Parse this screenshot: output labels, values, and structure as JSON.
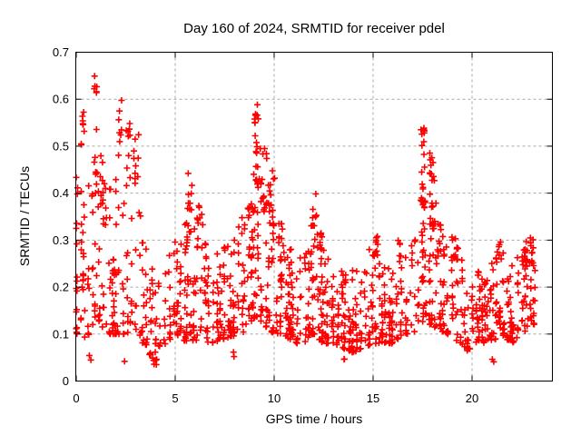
{
  "chart_data": {
    "type": "scatter",
    "title": "Day 160 of 2024, SRMTID for receiver pdel",
    "xlabel": "GPS time / hours",
    "ylabel": "SRMTID / TECUs",
    "xlim": [
      0,
      24.06
    ],
    "ylim": [
      0,
      0.7
    ],
    "xticks": [
      0,
      5,
      10,
      15,
      20
    ],
    "xtick_labels": [
      "0",
      "5",
      "10",
      "15",
      "20"
    ],
    "yticks": [
      0,
      0.1,
      0.2,
      0.3,
      0.4,
      0.5,
      0.6,
      0.7
    ],
    "ytick_labels": [
      "0",
      "0.1",
      "0.2",
      "0.3",
      "0.4",
      "0.5",
      "0.6",
      "0.7"
    ],
    "grid": true,
    "legend": "none",
    "marker": {
      "shape": "plus",
      "size": 7,
      "color": "#ff0000"
    },
    "colors": {
      "marker": "#ff0000",
      "grid": "#a8a8a8",
      "axis": "#000000",
      "background": "#ffffff"
    },
    "series_name": "SRMTID for receiver pdel",
    "time_range_hours": [
      0,
      23.15
    ],
    "approx_point_count": 1500,
    "data_encoding": {
      "envelope": "piecewise band of the dense point cloud read off the plot: [hour, y_min_TECU, y_max_TECU, relative_density]; points cluster toward the band bottom",
      "clusters": "localized bursts / spikes read off the plot: [hour_start, hour_end, y_min_TECU, y_max_TECU, point_count]",
      "seed": "deterministic seed used to scatter points inside the measured envelope"
    },
    "seed": 160,
    "envelope": [
      [
        0.0,
        0.1,
        0.46,
        1.3
      ],
      [
        0.5,
        0.09,
        0.44,
        1.2
      ],
      [
        1.0,
        0.12,
        0.46,
        1.3
      ],
      [
        1.5,
        0.1,
        0.42,
        1.0
      ],
      [
        2.0,
        0.1,
        0.46,
        1.1
      ],
      [
        2.5,
        0.1,
        0.47,
        1.2
      ],
      [
        3.0,
        0.11,
        0.45,
        1.0
      ],
      [
        3.5,
        0.07,
        0.3,
        0.8
      ],
      [
        4.0,
        0.04,
        0.22,
        0.7
      ],
      [
        4.5,
        0.08,
        0.26,
        0.9
      ],
      [
        5.0,
        0.1,
        0.3,
        1.0
      ],
      [
        5.7,
        0.08,
        0.4,
        1.1
      ],
      [
        6.2,
        0.09,
        0.34,
        1.0
      ],
      [
        6.8,
        0.08,
        0.26,
        1.0
      ],
      [
        7.5,
        0.09,
        0.29,
        1.1
      ],
      [
        8.3,
        0.1,
        0.34,
        1.1
      ],
      [
        8.8,
        0.12,
        0.38,
        1.1
      ],
      [
        9.1,
        0.14,
        0.5,
        1.2
      ],
      [
        9.5,
        0.12,
        0.46,
        1.2
      ],
      [
        10.0,
        0.1,
        0.4,
        1.1
      ],
      [
        10.5,
        0.1,
        0.34,
        1.1
      ],
      [
        11.0,
        0.08,
        0.28,
        1.0
      ],
      [
        11.5,
        0.08,
        0.26,
        1.0
      ],
      [
        12.0,
        0.1,
        0.36,
        1.1
      ],
      [
        12.5,
        0.08,
        0.3,
        1.0
      ],
      [
        13.0,
        0.08,
        0.25,
        1.1
      ],
      [
        14.0,
        0.06,
        0.24,
        1.1
      ],
      [
        15.0,
        0.08,
        0.3,
        1.1
      ],
      [
        15.5,
        0.08,
        0.26,
        1.0
      ],
      [
        16.0,
        0.08,
        0.25,
        1.0
      ],
      [
        16.5,
        0.1,
        0.28,
        1.0
      ],
      [
        17.0,
        0.1,
        0.3,
        1.0
      ],
      [
        17.5,
        0.12,
        0.42,
        1.1
      ],
      [
        18.0,
        0.12,
        0.44,
        1.1
      ],
      [
        18.5,
        0.1,
        0.32,
        1.0
      ],
      [
        19.0,
        0.1,
        0.33,
        1.0
      ],
      [
        19.5,
        0.07,
        0.26,
        0.9
      ],
      [
        20.0,
        0.06,
        0.22,
        0.8
      ],
      [
        20.5,
        0.08,
        0.24,
        0.9
      ],
      [
        21.0,
        0.08,
        0.26,
        0.9
      ],
      [
        21.5,
        0.1,
        0.28,
        0.9
      ],
      [
        22.0,
        0.08,
        0.25,
        0.9
      ],
      [
        22.5,
        0.1,
        0.28,
        1.0
      ],
      [
        23.0,
        0.12,
        0.31,
        1.0
      ],
      [
        23.2,
        0.12,
        0.28,
        0.8
      ]
    ],
    "clusters": [
      [
        0.25,
        0.45,
        0.5,
        0.575,
        8
      ],
      [
        0.9,
        1.05,
        0.6,
        0.655,
        6
      ],
      [
        0.9,
        1.1,
        0.42,
        0.55,
        6
      ],
      [
        1.2,
        1.45,
        0.35,
        0.48,
        8
      ],
      [
        2.1,
        2.35,
        0.48,
        0.6,
        8
      ],
      [
        2.5,
        2.75,
        0.42,
        0.55,
        8
      ],
      [
        2.9,
        3.2,
        0.4,
        0.54,
        8
      ],
      [
        5.6,
        5.9,
        0.3,
        0.45,
        10
      ],
      [
        6.1,
        6.4,
        0.28,
        0.38,
        10
      ],
      [
        8.6,
        8.95,
        0.25,
        0.38,
        10
      ],
      [
        9.0,
        9.2,
        0.5,
        0.615,
        9
      ],
      [
        9.0,
        9.25,
        0.4,
        0.52,
        10
      ],
      [
        9.3,
        9.65,
        0.36,
        0.5,
        14
      ],
      [
        9.7,
        10.05,
        0.3,
        0.45,
        12
      ],
      [
        10.2,
        10.5,
        0.25,
        0.35,
        10
      ],
      [
        11.9,
        12.15,
        0.3,
        0.4,
        9
      ],
      [
        12.2,
        12.5,
        0.26,
        0.33,
        6
      ],
      [
        15.05,
        15.3,
        0.26,
        0.315,
        9
      ],
      [
        16.25,
        16.45,
        0.24,
        0.3,
        6
      ],
      [
        17.4,
        17.6,
        0.5,
        0.55,
        8
      ],
      [
        17.4,
        17.62,
        0.36,
        0.5,
        10
      ],
      [
        17.45,
        17.6,
        0.25,
        0.37,
        6
      ],
      [
        17.85,
        18.1,
        0.4,
        0.49,
        10
      ],
      [
        17.85,
        18.15,
        0.3,
        0.4,
        8
      ],
      [
        18.2,
        18.45,
        0.24,
        0.34,
        8
      ],
      [
        19.0,
        19.3,
        0.25,
        0.32,
        10
      ],
      [
        21.2,
        21.5,
        0.24,
        0.3,
        8
      ],
      [
        22.55,
        22.8,
        0.22,
        0.29,
        8
      ],
      [
        22.85,
        23.1,
        0.24,
        0.32,
        8
      ],
      [
        0.55,
        0.75,
        0.035,
        0.06,
        2
      ],
      [
        2.4,
        2.5,
        0.04,
        0.05,
        1
      ],
      [
        3.9,
        4.15,
        0.03,
        0.06,
        3
      ],
      [
        7.8,
        8.0,
        0.05,
        0.07,
        2
      ],
      [
        13.4,
        13.6,
        0.04,
        0.06,
        2
      ],
      [
        19.7,
        19.9,
        0.05,
        0.07,
        2
      ],
      [
        21.0,
        21.1,
        0.04,
        0.06,
        2
      ]
    ]
  }
}
